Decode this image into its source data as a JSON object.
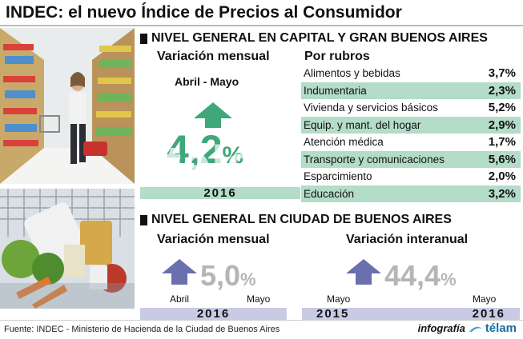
{
  "title": "INDEC: el nuevo Índice de Precios al Consumidor",
  "section1": {
    "header": "NIVEL GENERAL EN CAPITAL Y GRAN BUENOS AIRES",
    "monthly_label": "Variación mensual",
    "period": "Abril - Mayo",
    "value": "4,2",
    "unit": "%",
    "year": "2016",
    "rubros_title": "Por rubros"
  },
  "section2": {
    "header": "NIVEL GENERAL EN CIUDAD DE BUENOS AIRES",
    "monthly_label": "Variación mensual",
    "monthly_value": "5,0",
    "monthly_unit": "%",
    "monthly_from": "Abril",
    "monthly_to": "Mayo",
    "monthly_year": "2016",
    "annual_label": "Variación interanual",
    "annual_value": "44,4",
    "annual_unit": "%",
    "annual_from": "Mayo",
    "annual_to": "Mayo",
    "annual_year_from": "2015",
    "annual_year_to": "2016"
  },
  "chart_data": {
    "type": "table",
    "title": "Por rubros",
    "unit": "%",
    "categories": [
      "Alimentos y bebidas",
      "Indumentaria",
      "Vivienda y servicios básicos",
      "Equip. y mant. del hogar",
      "Atención médica",
      "Transporte y comunicaciones",
      "Esparcimiento",
      "Educación"
    ],
    "values": [
      3.7,
      2.3,
      5.2,
      2.9,
      1.7,
      5.6,
      2.0,
      3.2
    ],
    "labels": [
      "3,7%",
      "2,3%",
      "5,2%",
      "2,9%",
      "1,7%",
      "5,6%",
      "2,0%",
      "3,2%"
    ],
    "shaded": [
      false,
      true,
      false,
      true,
      false,
      true,
      false,
      true
    ]
  },
  "watermark": "télam",
  "footer": {
    "source": "Fuente: INDEC - Ministerio de Hacienda de la Ciudad de Buenos Aires",
    "credit_prefix": "infografía",
    "credit_brand": "télam"
  },
  "colors": {
    "green_arrow": "#3fa77a",
    "green_band": "#b3dcc9",
    "purple_arrow": "#6a6fae",
    "purple_band": "#c9cbe4",
    "value_gray": "#b5b5b5"
  }
}
